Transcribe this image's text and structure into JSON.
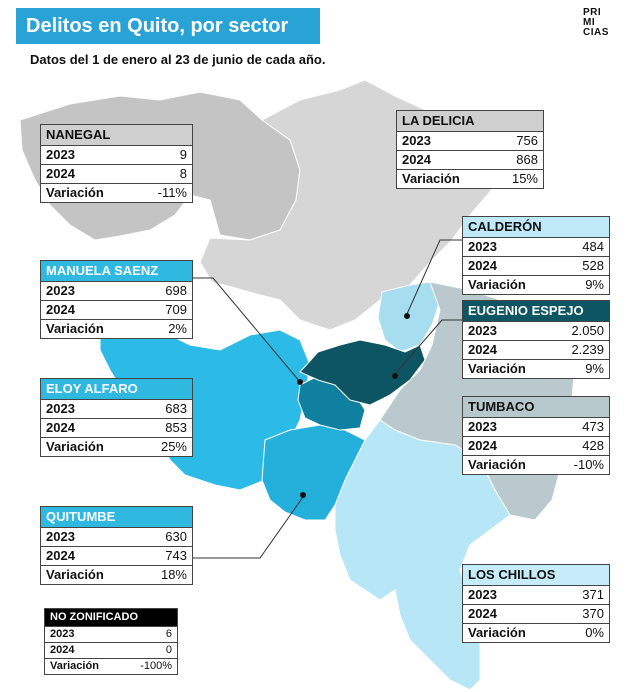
{
  "header": {
    "title": "Delitos en Quito, por sector",
    "subtitle": "Datos del 1 de enero al 23 de junio de cada año."
  },
  "logo": {
    "lines": [
      "PRI",
      "MI",
      "CIAS"
    ]
  },
  "row_labels": {
    "y1": "2023",
    "y2": "2024",
    "var": "Variación"
  },
  "sectors": {
    "nanegal": {
      "name": "NANEGAL",
      "y2023": "9",
      "y2024": "8",
      "variation": "-11%",
      "color": "#cfcfcf"
    },
    "la_delicia": {
      "name": "LA DELICIA",
      "y2023": "756",
      "y2024": "868",
      "variation": "15%",
      "color": "#d9d9d9"
    },
    "calderon": {
      "name": "CALDERÓN",
      "y2023": "484",
      "y2024": "528",
      "variation": "9%",
      "color": "#9fdcef"
    },
    "manuela": {
      "name": "MANUELA SAENZ",
      "y2023": "698",
      "y2024": "709",
      "variation": "2%",
      "color": "#0f7f9c"
    },
    "eugenio": {
      "name": "EUGENIO ESPEJO",
      "y2023": "2.050",
      "y2024": "2.239",
      "variation": "9%",
      "color": "#0d5563"
    },
    "eloy": {
      "name": "ELOY ALFARO",
      "y2023": "683",
      "y2024": "853",
      "variation": "25%",
      "color": "#1aa6d6"
    },
    "tumbaco": {
      "name": "TUMBACO",
      "y2023": "473",
      "y2024": "428",
      "variation": "-10%",
      "color": "#b7c8cc"
    },
    "quitumbe": {
      "name": "QUITUMBE",
      "y2023": "630",
      "y2024": "743",
      "variation": "18%",
      "color": "#24b3de"
    },
    "chillos": {
      "name": "LOS CHILLOS",
      "y2023": "371",
      "y2024": "370",
      "variation": "0%",
      "color": "#b6e6f7"
    },
    "nozon": {
      "name": "NO ZONIFICADO",
      "y2023": "6",
      "y2024": "0",
      "variation": "-100%",
      "color": "#000000"
    }
  }
}
